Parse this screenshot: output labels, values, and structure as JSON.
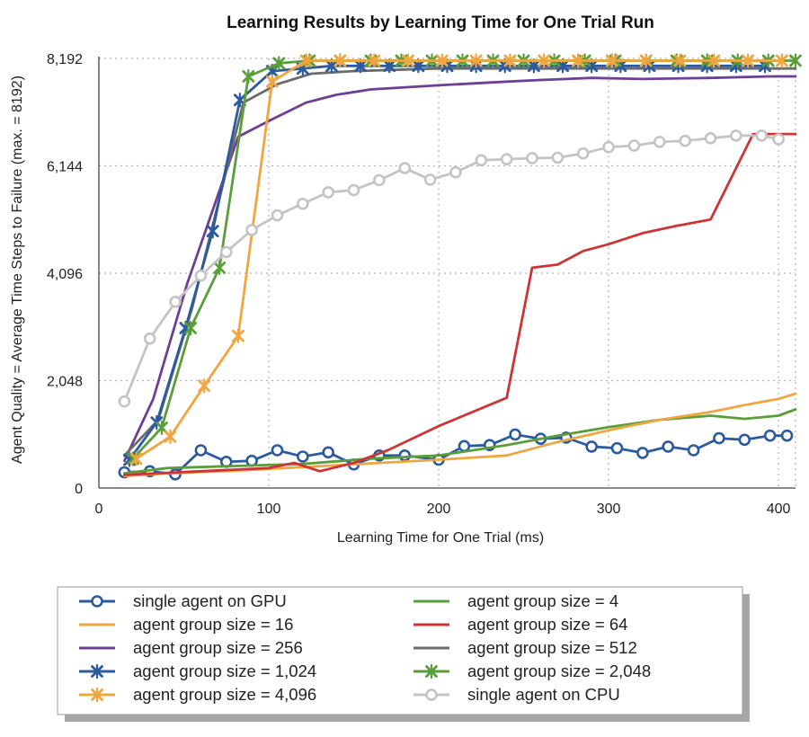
{
  "chart_data": {
    "type": "line",
    "title": "Learning Results by Learning Time for One Trial Run",
    "xlabel": "Learning Time for One Trial (ms)",
    "ylabel": "Agent Quality = Average Time Steps to Failure (max. = 8192)",
    "xlim": [
      0,
      410
    ],
    "ylim": [
      0,
      8192
    ],
    "xticks": [
      0,
      100,
      200,
      300,
      400
    ],
    "xtick_labels": [
      "0",
      "100",
      "200",
      "300",
      "400"
    ],
    "yticks": [
      0,
      2048,
      4096,
      6144,
      8192
    ],
    "ytick_labels": [
      "0",
      "2,048",
      "4,096",
      "6,144",
      "8,192"
    ],
    "grid": true,
    "legend_position": "bottom",
    "series": [
      {
        "name": "single agent on GPU",
        "color": "#2b5a9e",
        "marker": "circle",
        "x": [
          15,
          30,
          45,
          60,
          75,
          90,
          105,
          120,
          135,
          150,
          165,
          180,
          200,
          215,
          230,
          245,
          260,
          275,
          290,
          305,
          320,
          335,
          350,
          365,
          380,
          395,
          405
        ],
        "y": [
          300,
          320,
          260,
          720,
          500,
          520,
          720,
          600,
          680,
          450,
          620,
          620,
          540,
          800,
          820,
          1020,
          940,
          960,
          790,
          760,
          670,
          790,
          720,
          950,
          920,
          1000,
          1000
        ]
      },
      {
        "name": "agent group size = 4",
        "color": "#5a9e3a",
        "marker": "none",
        "x": [
          15,
          40,
          80,
          120,
          160,
          200,
          240,
          270,
          300,
          330,
          360,
          380,
          400,
          410
        ],
        "y": [
          280,
          380,
          420,
          460,
          560,
          620,
          820,
          1000,
          1160,
          1300,
          1380,
          1320,
          1380,
          1500
        ]
      },
      {
        "name": "agent group size = 16",
        "color": "#f0a640",
        "marker": "none",
        "x": [
          15,
          40,
          80,
          120,
          160,
          200,
          240,
          270,
          300,
          330,
          360,
          380,
          400,
          410
        ],
        "y": [
          230,
          280,
          330,
          400,
          470,
          540,
          620,
          880,
          1100,
          1300,
          1450,
          1580,
          1700,
          1800
        ]
      },
      {
        "name": "agent group size = 64",
        "color": "#cf3434",
        "marker": "none",
        "x": [
          15,
          60,
          100,
          115,
          130,
          150,
          170,
          200,
          240,
          255,
          270,
          285,
          300,
          320,
          340,
          360,
          385,
          410
        ],
        "y": [
          250,
          320,
          380,
          480,
          320,
          480,
          720,
          1180,
          1720,
          4200,
          4260,
          4520,
          4650,
          4860,
          5000,
          5120,
          6750,
          6750
        ]
      },
      {
        "name": "agent group size = 256",
        "color": "#6e3f94",
        "marker": "none",
        "x": [
          15,
          32,
          52,
          82,
          100,
          122,
          140,
          160,
          200,
          240,
          260,
          290,
          320,
          360,
          395,
          410
        ],
        "y": [
          520,
          1700,
          3900,
          6700,
          7000,
          7350,
          7500,
          7600,
          7680,
          7750,
          7780,
          7820,
          7800,
          7820,
          7850,
          7850
        ]
      },
      {
        "name": "agent group size = 512",
        "color": "#6b6b6b",
        "marker": "none",
        "x": [
          15,
          35,
          55,
          85,
          105,
          125,
          150,
          200,
          260,
          320,
          380,
          410
        ],
        "y": [
          620,
          1300,
          3450,
          7350,
          7700,
          7900,
          7950,
          8000,
          8000,
          8000,
          8000,
          8000
        ]
      },
      {
        "name": "agent group size = 1,024",
        "color": "#2b5a9e",
        "marker": "x",
        "x": [
          18,
          34,
          51,
          67,
          83,
          102,
          120,
          137,
          154,
          171,
          188,
          205,
          222,
          239,
          256,
          273,
          290,
          307,
          324,
          341,
          358,
          375,
          392
        ],
        "y": [
          540,
          1250,
          3050,
          4900,
          7400,
          7950,
          8000,
          8050,
          8050,
          8050,
          8050,
          8050,
          8050,
          8050,
          8050,
          8050,
          8050,
          8050,
          8050,
          8050,
          8050,
          8050,
          8050
        ]
      },
      {
        "name": "agent group size = 2,048",
        "color": "#5a9e3a",
        "marker": "x",
        "x": [
          20,
          37,
          54,
          71,
          88,
          106,
          124,
          142,
          160,
          178,
          196,
          214,
          232,
          250,
          268,
          286,
          304,
          322,
          340,
          358,
          376,
          394,
          410
        ],
        "y": [
          560,
          1150,
          3050,
          4200,
          7850,
          8100,
          8150,
          8150,
          8150,
          8150,
          8150,
          8150,
          8150,
          8150,
          8150,
          8150,
          8150,
          8150,
          8150,
          8150,
          8150,
          8150,
          8150
        ]
      },
      {
        "name": "agent group size = 4,096",
        "color": "#f0a640",
        "marker": "x",
        "x": [
          22,
          42,
          62,
          82,
          102,
          122,
          142,
          162,
          182,
          202,
          222,
          242,
          262,
          282,
          302,
          322,
          342,
          362,
          382,
          402
        ],
        "y": [
          560,
          980,
          1950,
          2900,
          7750,
          8150,
          8150,
          8150,
          8150,
          8150,
          8150,
          8150,
          8150,
          8150,
          8150,
          8150,
          8150,
          8150,
          8150,
          8150
        ]
      },
      {
        "name": "single agent on CPU",
        "color": "#c4c4c4",
        "marker": "circle",
        "x": [
          15,
          30,
          45,
          60,
          75,
          90,
          105,
          120,
          135,
          150,
          165,
          180,
          195,
          210,
          225,
          240,
          255,
          270,
          285,
          300,
          315,
          330,
          345,
          360,
          375,
          390,
          400
        ],
        "y": [
          1650,
          2850,
          3550,
          4050,
          4500,
          4920,
          5200,
          5420,
          5640,
          5680,
          5870,
          6100,
          5880,
          6020,
          6250,
          6270,
          6290,
          6300,
          6380,
          6500,
          6530,
          6600,
          6620,
          6670,
          6720,
          6720,
          6650
        ]
      }
    ]
  }
}
